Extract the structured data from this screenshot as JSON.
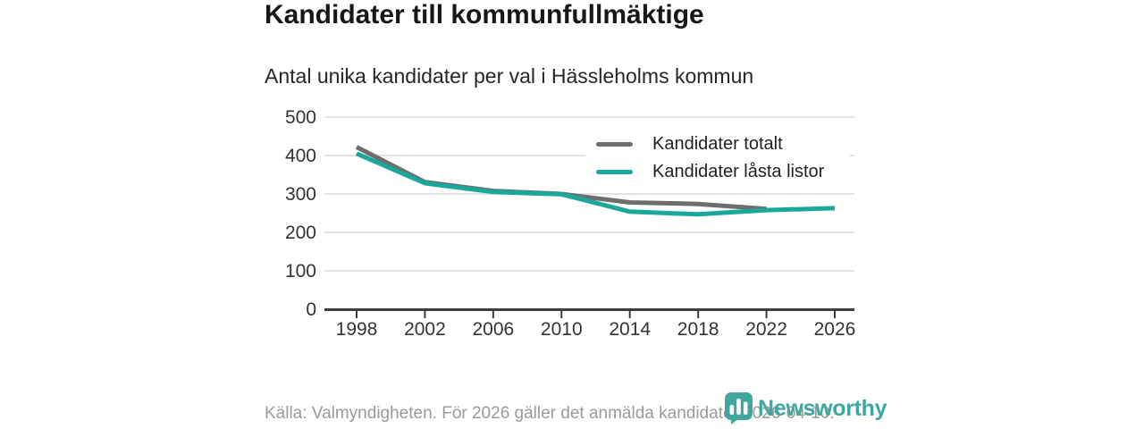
{
  "header": {
    "title": "Kandidater till kommunfullmäktige",
    "subtitle": "Antal unika kandidater per val i Hässleholms kommun"
  },
  "footer": {
    "source": "Källa: Valmyndigheten. För 2026 gäller det anmälda kandidater 2026-04-10.",
    "brand": "Newsworthy"
  },
  "colors": {
    "line_total": "#6e6e6e",
    "line_locked": "#1aa79c",
    "grid": "#e2e2e2",
    "axis": "#3d3d3d",
    "tick_text": "#333333",
    "title_text": "#171717",
    "subtitle_text": "#262626",
    "legend_text": "#1f1f1f",
    "footer_text": "#9a9a9a",
    "brand_teal": "#3fa7a0",
    "legend_background": "#ffffff"
  },
  "chart_data": {
    "type": "line",
    "title": "Kandidater till kommunfullmäktige",
    "subtitle": "Antal unika kandidater per val i Hässleholms kommun",
    "x": [
      1998,
      2002,
      2006,
      2010,
      2014,
      2018,
      2022,
      2026
    ],
    "series": [
      {
        "name": "Kandidater totalt",
        "color": "#6e6e6e",
        "values": [
          422,
          331,
          308,
          300,
          278,
          274,
          261,
          null
        ]
      },
      {
        "name": "Kandidater låsta listor",
        "color": "#1aa79c",
        "values": [
          405,
          328,
          305,
          299,
          254,
          247,
          258,
          263
        ]
      }
    ],
    "xlabel": "",
    "ylabel": "",
    "ylim": [
      0,
      500
    ],
    "yticks": [
      0,
      100,
      200,
      300,
      400,
      500
    ],
    "xticks": [
      1998,
      2002,
      2006,
      2010,
      2014,
      2018,
      2022,
      2026
    ],
    "grid": "horizontal",
    "legend_position": "top-right-inside"
  }
}
